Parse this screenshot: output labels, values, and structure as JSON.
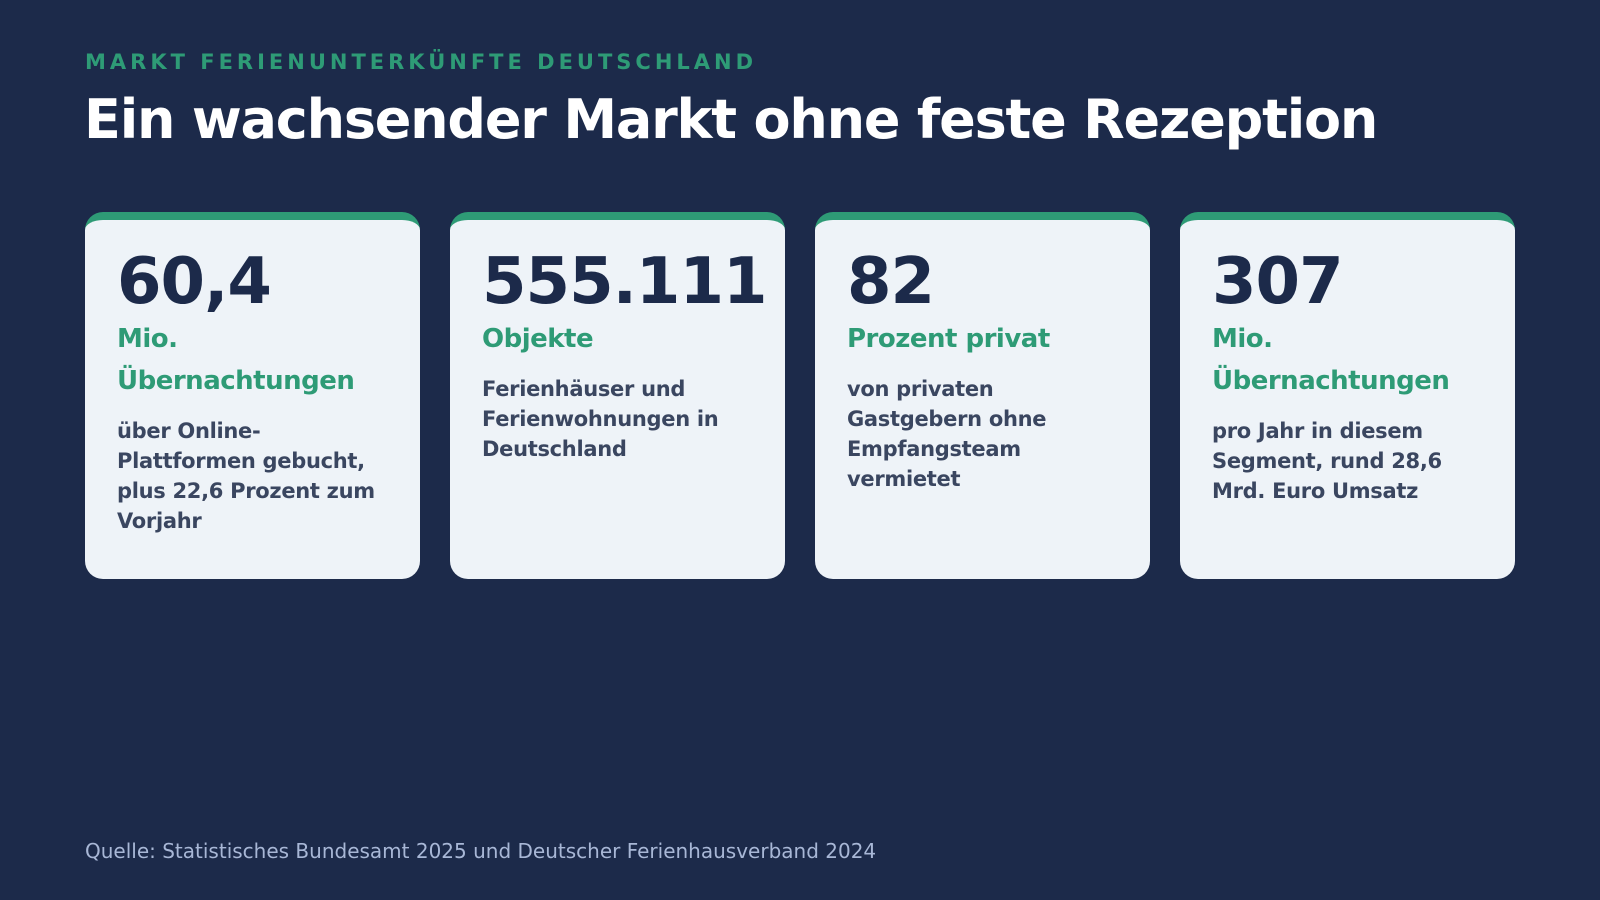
{
  "header": {
    "eyebrow": "MARKT FERIENUNTERKÜNFTE DEUTSCHLAND",
    "title": "Ein wachsender Markt ohne feste Rezeption"
  },
  "cards": [
    {
      "value": "60,4",
      "unit": "Mio. Übernachtungen",
      "description": "über Online-Plattformen gebucht, plus 22,6 Prozent zum Vorjahr"
    },
    {
      "value": "555.111",
      "unit": "Objekte",
      "description": "Ferienhäuser und Ferienwohnungen in Deutschland"
    },
    {
      "value": "82",
      "unit": "Prozent privat",
      "description": "von privaten Gastgebern ohne Empfangsteam vermietet"
    },
    {
      "value": "307",
      "unit": "Mio. Übernachtungen",
      "description": "pro Jahr in diesem Segment, rund 28,6 Mrd. Euro Umsatz"
    }
  ],
  "footer": {
    "source": "Quelle: Statistisches Bundesamt 2025 und Deutscher Ferienhausverband 2024"
  },
  "colors": {
    "background": "#1c2a4a",
    "accent": "#2e9b76",
    "card": "#eef3f8",
    "text_dark": "#1c2a4a"
  }
}
